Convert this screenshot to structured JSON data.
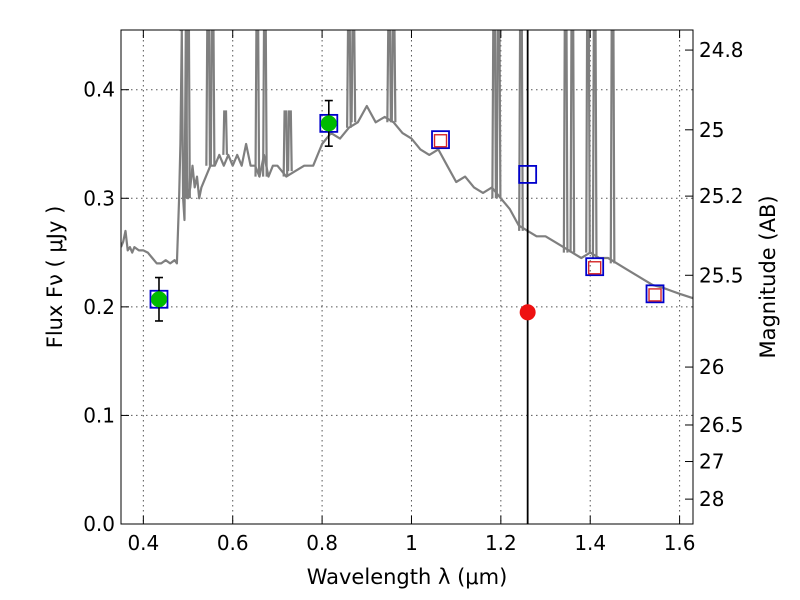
{
  "chart_data": {
    "type": "scatter",
    "xlabel": "Wavelength  λ (μm)",
    "ylabel": "Flux  Fν  ( μJy )",
    "ylabel_right": "Magnitude (AB)",
    "xlim": [
      0.35,
      1.63
    ],
    "ylim": [
      0.0,
      0.455
    ],
    "grid": true,
    "x_ticks": [
      {
        "value": 0.4,
        "label": "0.4"
      },
      {
        "value": 0.6,
        "label": "0.6"
      },
      {
        "value": 0.8,
        "label": "0.8"
      },
      {
        "value": 1.0,
        "label": "1"
      },
      {
        "value": 1.2,
        "label": "1.2"
      },
      {
        "value": 1.4,
        "label": "1.4"
      },
      {
        "value": 1.6,
        "label": "1.6"
      }
    ],
    "y_ticks": [
      {
        "value": 0.0,
        "label": "0.0"
      },
      {
        "value": 0.1,
        "label": "0.1"
      },
      {
        "value": 0.2,
        "label": "0.2"
      },
      {
        "value": 0.3,
        "label": "0.3"
      },
      {
        "value": 0.4,
        "label": "0.4"
      }
    ],
    "mag_ticks": [
      {
        "value": 24.8,
        "label": "24.8"
      },
      {
        "value": 25,
        "label": "25"
      },
      {
        "value": 25.2,
        "label": "25.2"
      },
      {
        "value": 25.5,
        "label": "25.5"
      },
      {
        "value": 26,
        "label": "26"
      },
      {
        "value": 26.5,
        "label": "26.5"
      },
      {
        "value": 27,
        "label": "27"
      },
      {
        "value": 28,
        "label": "28"
      }
    ],
    "vertical_line_x": 1.26,
    "colors": {
      "spectrum": "#7f7f7f",
      "model_box": "#0000cc",
      "observed_box": "#d62728",
      "detection": "#00bb00",
      "highlight": "#ee1111",
      "vline": "#000000"
    },
    "spectrum": {
      "x": [
        0.35,
        0.355,
        0.36,
        0.365,
        0.37,
        0.375,
        0.38,
        0.39,
        0.4,
        0.41,
        0.42,
        0.43,
        0.44,
        0.45,
        0.46,
        0.47,
        0.475,
        0.48,
        0.483,
        0.486,
        0.489,
        0.492,
        0.495,
        0.498,
        0.5,
        0.505,
        0.51,
        0.515,
        0.52,
        0.525,
        0.53,
        0.54,
        0.55,
        0.56,
        0.57,
        0.58,
        0.59,
        0.6,
        0.61,
        0.62,
        0.63,
        0.64,
        0.65,
        0.66,
        0.67,
        0.68,
        0.69,
        0.7,
        0.72,
        0.74,
        0.76,
        0.78,
        0.8,
        0.82,
        0.84,
        0.86,
        0.88,
        0.9,
        0.92,
        0.94,
        0.96,
        0.98,
        1.0,
        1.02,
        1.04,
        1.06,
        1.08,
        1.1,
        1.12,
        1.14,
        1.16,
        1.18,
        1.2,
        1.22,
        1.24,
        1.26,
        1.28,
        1.3,
        1.32,
        1.34,
        1.36,
        1.38,
        1.4,
        1.42,
        1.44,
        1.46,
        1.48,
        1.5,
        1.52,
        1.54,
        1.56,
        1.58,
        1.6,
        1.63
      ],
      "y": [
        0.255,
        0.26,
        0.27,
        0.252,
        0.255,
        0.25,
        0.255,
        0.252,
        0.252,
        0.25,
        0.245,
        0.24,
        0.24,
        0.243,
        0.24,
        0.243,
        0.24,
        0.3,
        0.35,
        0.455,
        0.3,
        0.28,
        0.455,
        0.32,
        0.3,
        0.31,
        0.33,
        0.31,
        0.32,
        0.3,
        0.31,
        0.32,
        0.33,
        0.33,
        0.34,
        0.33,
        0.34,
        0.33,
        0.34,
        0.33,
        0.35,
        0.33,
        0.33,
        0.32,
        0.34,
        0.32,
        0.33,
        0.33,
        0.32,
        0.325,
        0.33,
        0.33,
        0.35,
        0.36,
        0.355,
        0.365,
        0.37,
        0.385,
        0.37,
        0.375,
        0.37,
        0.36,
        0.355,
        0.345,
        0.34,
        0.345,
        0.33,
        0.315,
        0.32,
        0.31,
        0.305,
        0.31,
        0.3,
        0.29,
        0.275,
        0.27,
        0.265,
        0.265,
        0.26,
        0.255,
        0.25,
        0.245,
        0.25,
        0.245,
        0.245,
        0.24,
        0.235,
        0.23,
        0.225,
        0.22,
        0.218,
        0.215,
        0.212,
        0.208
      ]
    },
    "spikes": [
      {
        "x": 0.485,
        "y": 0.455
      },
      {
        "x": 0.5,
        "y": 0.455
      },
      {
        "x": 0.545,
        "y": 0.455
      },
      {
        "x": 0.555,
        "y": 0.455
      },
      {
        "x": 0.583,
        "y": 0.38
      },
      {
        "x": 0.655,
        "y": 0.455
      },
      {
        "x": 0.672,
        "y": 0.455
      },
      {
        "x": 0.718,
        "y": 0.38
      },
      {
        "x": 0.728,
        "y": 0.38
      },
      {
        "x": 0.86,
        "y": 0.455
      },
      {
        "x": 0.87,
        "y": 0.455
      },
      {
        "x": 0.95,
        "y": 0.455
      },
      {
        "x": 0.96,
        "y": 0.455
      },
      {
        "x": 1.185,
        "y": 0.455
      },
      {
        "x": 1.195,
        "y": 0.455
      },
      {
        "x": 1.245,
        "y": 0.455
      },
      {
        "x": 1.345,
        "y": 0.455
      },
      {
        "x": 1.36,
        "y": 0.455
      },
      {
        "x": 1.395,
        "y": 0.455
      },
      {
        "x": 1.41,
        "y": 0.455
      },
      {
        "x": 1.45,
        "y": 0.455
      }
    ],
    "series": [
      {
        "marker": "square-blue",
        "x": [
          0.435,
          0.815,
          1.065,
          1.26,
          1.41,
          1.545
        ],
        "y": [
          0.207,
          0.369,
          0.354,
          0.322,
          0.237,
          0.212
        ]
      },
      {
        "marker": "square-red",
        "x": [
          1.065,
          1.41,
          1.545
        ],
        "y": [
          0.353,
          0.236,
          0.211
        ]
      },
      {
        "marker": "circle-green",
        "x": [
          0.435,
          0.815
        ],
        "y": [
          0.207,
          0.369
        ],
        "yerr": [
          0.02,
          0.021
        ]
      },
      {
        "marker": "circle-red",
        "x": [
          1.26
        ],
        "y": [
          0.195
        ]
      }
    ]
  }
}
